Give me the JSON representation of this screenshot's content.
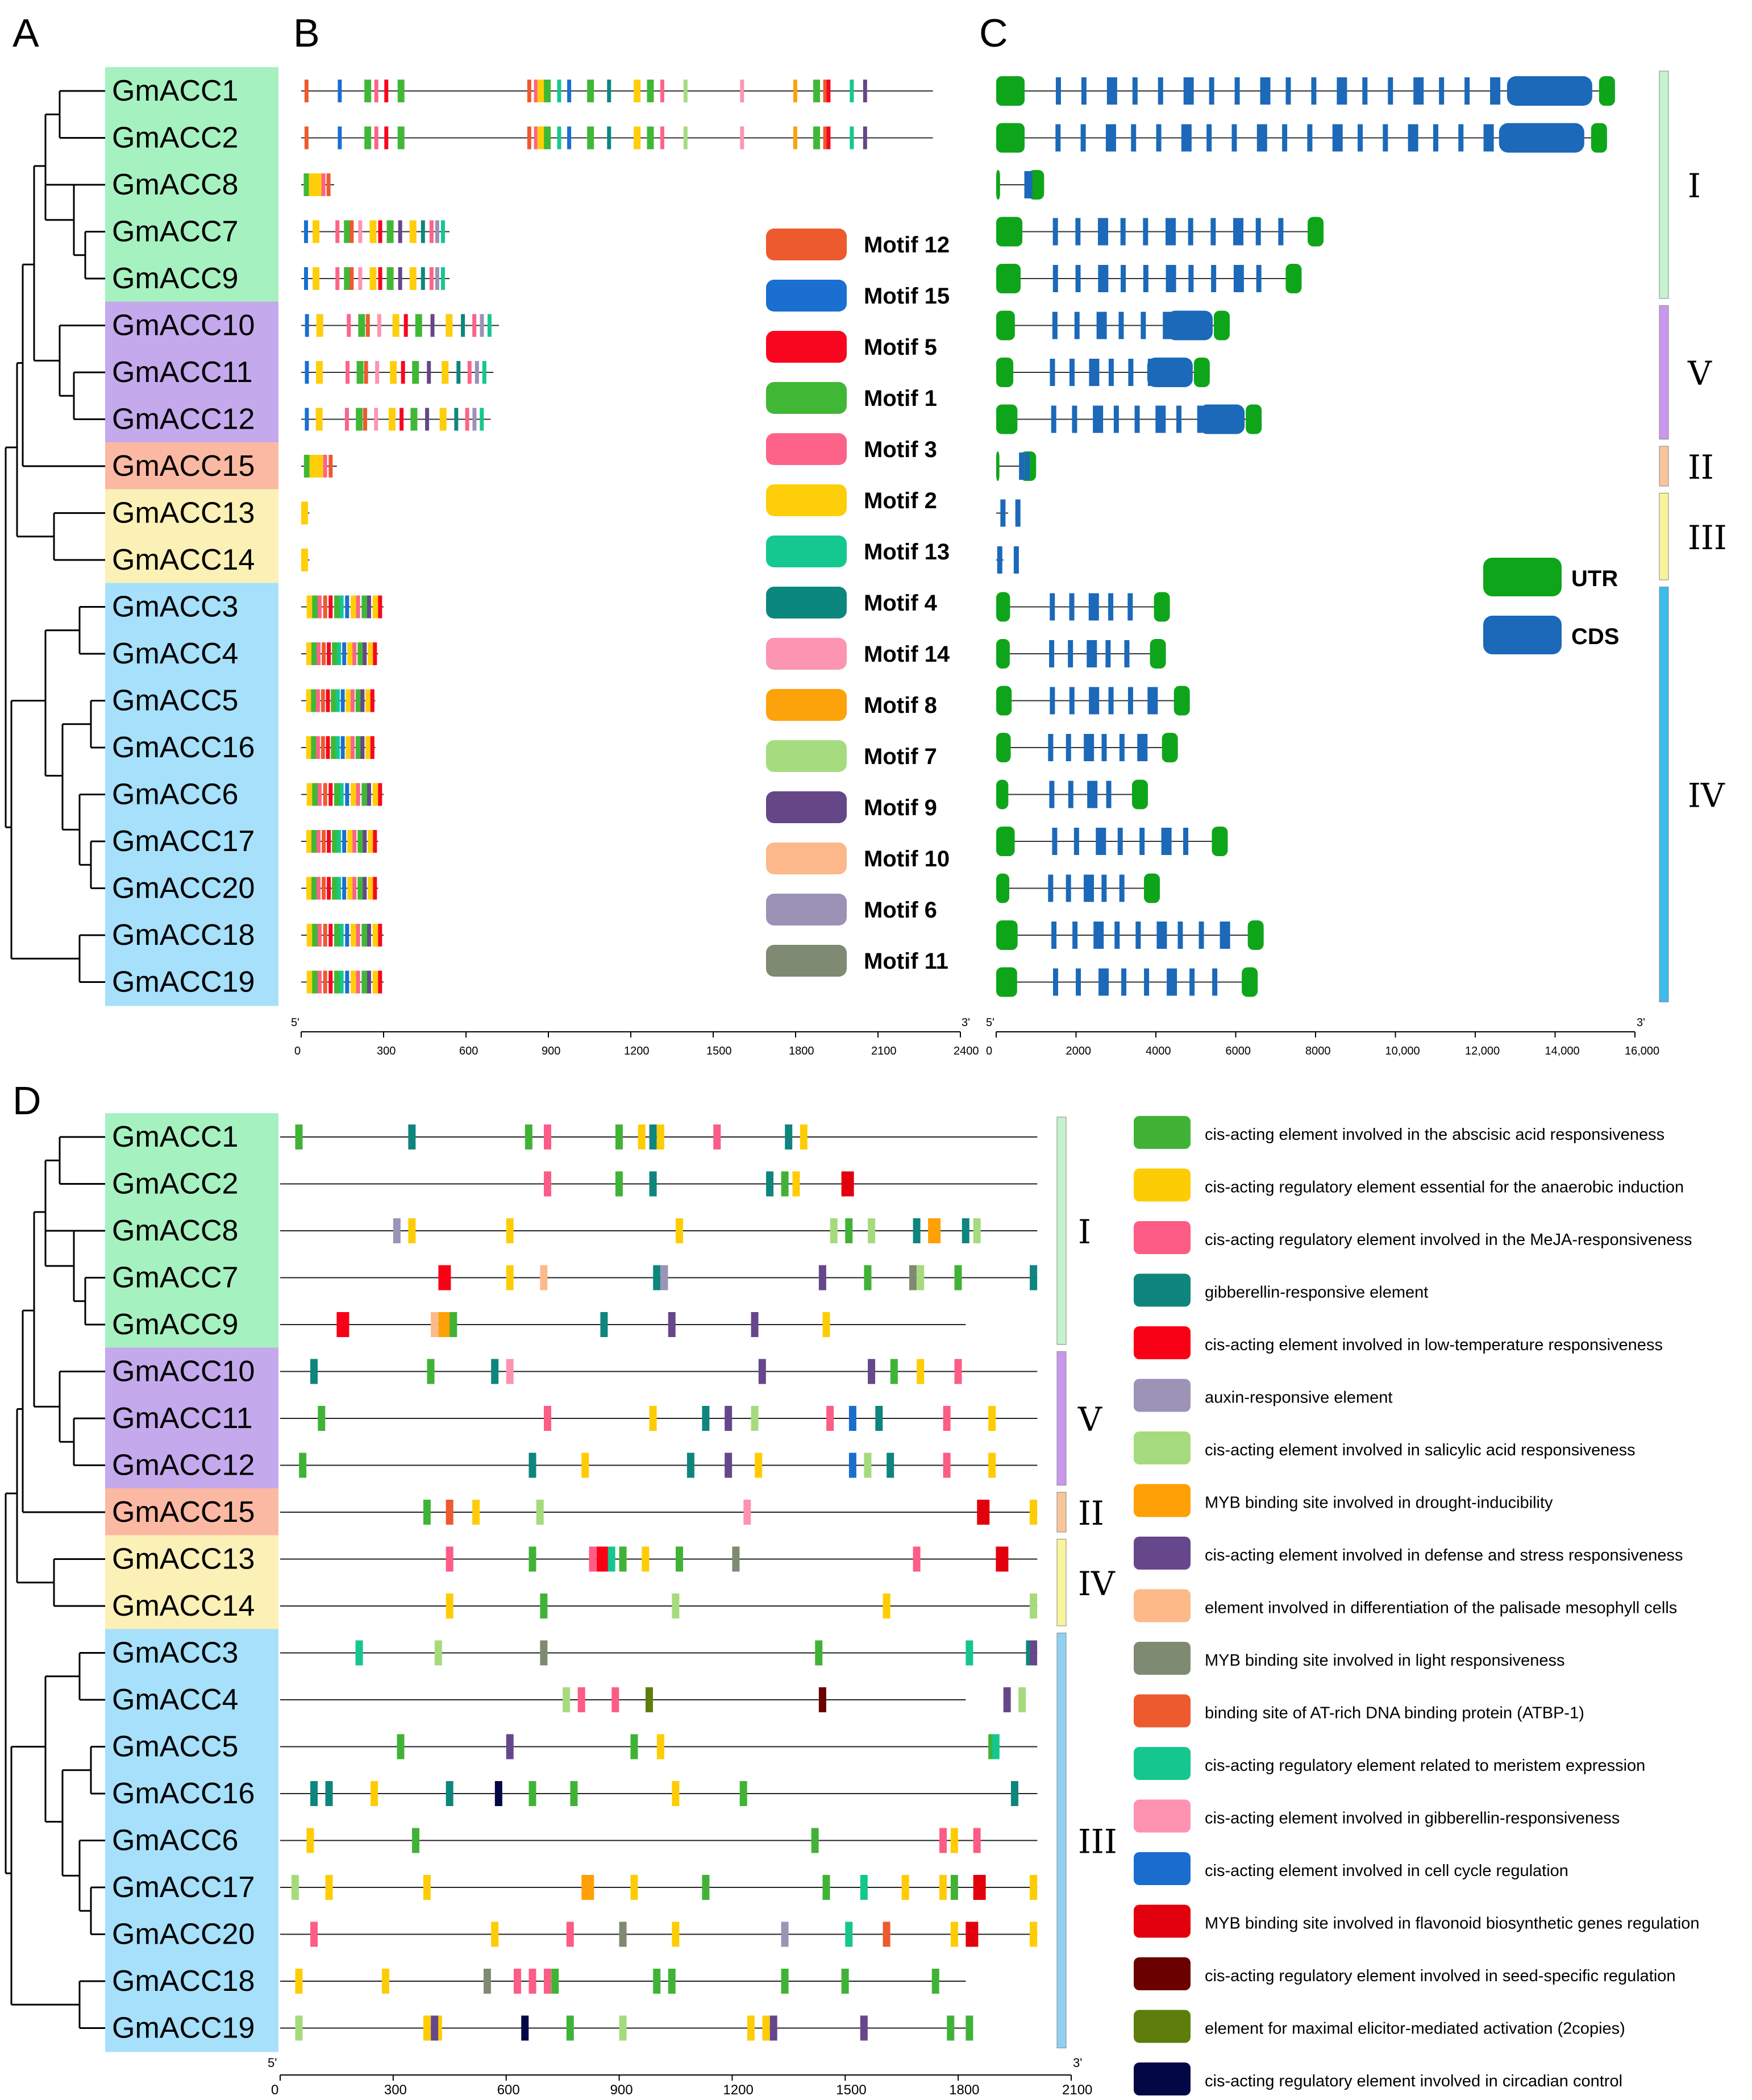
{
  "panel_letters": [
    "A",
    "B",
    "C",
    "D"
  ],
  "genes_top": [
    "GmACC1",
    "GmACC2",
    "GmACC8",
    "GmACC7",
    "GmACC9",
    "GmACC10",
    "GmACC11",
    "GmACC12",
    "GmACC15",
    "GmACC13",
    "GmACC14",
    "GmACC3",
    "GmACC4",
    "GmACC5",
    "GmACC16",
    "GmACC6",
    "GmACC17",
    "GmACC20",
    "GmACC18",
    "GmACC19"
  ],
  "genes_bottom": [
    "GmACC1",
    "GmACC2",
    "GmACC8",
    "GmACC7",
    "GmACC9",
    "GmACC10",
    "GmACC11",
    "GmACC12",
    "GmACC15",
    "GmACC13",
    "GmACC14",
    "GmACC3",
    "GmACC4",
    "GmACC5",
    "GmACC16",
    "GmACC6",
    "GmACC17",
    "GmACC20",
    "GmACC18",
    "GmACC19"
  ],
  "gene_groups": [
    "green",
    "green",
    "green",
    "green",
    "green",
    "purple",
    "purple",
    "purple",
    "salmon",
    "yellow",
    "yellow",
    "blue",
    "blue",
    "blue",
    "blue",
    "blue",
    "blue",
    "blue",
    "blue",
    "blue"
  ],
  "group_colors": {
    "green": "#a6f1c0",
    "purple": "#c4a9ec",
    "salmon": "#fbb9a3",
    "yellow": "#fbf0b6",
    "blue": "#a6e0fa"
  },
  "motif_legend": [
    {
      "label": "Motif 12",
      "color": "#ed5a2d"
    },
    {
      "label": "Motif 15",
      "color": "#1a6fd0"
    },
    {
      "label": "Motif 5",
      "color": "#f8061f"
    },
    {
      "label": "Motif 1",
      "color": "#40b836"
    },
    {
      "label": "Motif 3",
      "color": "#fd6388"
    },
    {
      "label": "Motif 2",
      "color": "#fece0a"
    },
    {
      "label": "Motif 13",
      "color": "#14c88f"
    },
    {
      "label": "Motif 4",
      "color": "#0c877e"
    },
    {
      "label": "Motif 14",
      "color": "#fc95b1"
    },
    {
      "label": "Motif 8",
      "color": "#fca20a"
    },
    {
      "label": "Motif 7",
      "color": "#a5dc80"
    },
    {
      "label": "Motif 9",
      "color": "#654788"
    },
    {
      "label": "Motif 10",
      "color": "#fcb88a"
    },
    {
      "label": "Motif 6",
      "color": "#9b92b6"
    },
    {
      "label": "Motif 11",
      "color": "#7f8a73"
    }
  ],
  "motif_axis": {
    "ticks": [
      "0",
      "300",
      "600",
      "900",
      "1200",
      "1500",
      "1800",
      "2100",
      "2400"
    ],
    "end5": "5'",
    "end3": "3'"
  },
  "motif_lengths": [
    2300,
    2300,
    120,
    540,
    540,
    720,
    700,
    690,
    130,
    30,
    30,
    300,
    280,
    270,
    270,
    300,
    280,
    280,
    300,
    300
  ],
  "structure_legend": [
    {
      "label": "UTR",
      "color": "#0fa51b"
    },
    {
      "label": "CDS",
      "color": "#1b69b8"
    }
  ],
  "structure_axis": {
    "ticks": [
      "0",
      "2000",
      "4000",
      "6000",
      "8000",
      "10,000",
      "12,000",
      "14,000",
      "16,000"
    ],
    "end5": "5'",
    "end3": "3'"
  },
  "structure_lengths": [
    15500,
    15300,
    1200,
    8200,
    7650,
    5850,
    5350,
    6650,
    1000,
    300,
    180,
    4350,
    4250,
    4850,
    4550,
    3800,
    5800,
    4100,
    6700,
    6550
  ],
  "structure_groups_top": [
    {
      "label": "I",
      "color": "#c5f2cf",
      "rows": [
        0,
        4
      ]
    },
    {
      "label": "V",
      "color": "#c997ee",
      "rows": [
        5,
        7
      ]
    },
    {
      "label": "II",
      "color": "#f8c59a",
      "rows": [
        8,
        8
      ]
    },
    {
      "label": "III",
      "color": "#f9f49b",
      "rows": [
        9,
        10
      ]
    },
    {
      "label": "IV",
      "color": "#3dbcec",
      "rows": [
        11,
        19
      ]
    }
  ],
  "promoter_axis": {
    "ticks": [
      "0",
      "300",
      "600",
      "900",
      "1200",
      "1500",
      "1800",
      "2100"
    ],
    "end5": "5'",
    "end3": "3'"
  },
  "promoter_groups": [
    {
      "label": "I",
      "color": "#c5f2cf",
      "rows": [
        0,
        4
      ]
    },
    {
      "label": "V",
      "color": "#c997ee",
      "rows": [
        5,
        7
      ]
    },
    {
      "label": "II",
      "color": "#f8c59a",
      "rows": [
        8,
        8
      ]
    },
    {
      "label": "IV",
      "color": "#f9f49b",
      "rows": [
        9,
        10
      ]
    },
    {
      "label": "III",
      "color": "#8fd0f3",
      "rows": [
        11,
        19
      ]
    }
  ],
  "cis_legend": [
    {
      "label": "cis-acting element involved in the abscisic acid responsiveness",
      "color": "#40b336"
    },
    {
      "label": "cis-acting regulatory element essential for the anaerobic induction",
      "color": "#fecc04"
    },
    {
      "label": "cis-acting regulatory element involved in the MeJA-responsiveness",
      "color": "#fc5c85"
    },
    {
      "label": "gibberellin-responsive element",
      "color": "#0e857d"
    },
    {
      "label": "cis-acting element involved in low-temperature responsiveness",
      "color": "#f80015"
    },
    {
      "label": "auxin-responsive element",
      "color": "#9c93b7"
    },
    {
      "label": "cis-acting element involved in salicylic acid responsiveness",
      "color": "#a6db7d"
    },
    {
      "label": "MYB binding site involved in drought-inducibility",
      "color": "#fea006"
    },
    {
      "label": "cis-acting element involved in defense and stress responsiveness",
      "color": "#66478b"
    },
    {
      "label": "element involved in differentiation of the palisade mesophyll cells",
      "color": "#fdba89"
    },
    {
      "label": "MYB binding site involved in light responsiveness",
      "color": "#7f8a72"
    },
    {
      "label": "binding site of AT-rich DNA binding protein (ATBP-1)",
      "color": "#ec5a2e"
    },
    {
      "label": "cis-acting regulatory element related to meristem expression",
      "color": "#16c68f"
    },
    {
      "label": "cis-acting element involved in gibberellin-responsiveness",
      "color": "#fd93b0"
    },
    {
      "label": "cis-acting element involved in cell cycle regulation",
      "color": "#1a6dce"
    },
    {
      "label": "MYB binding site involved in flavonoid biosynthetic genes regulation",
      "color": "#e3000d"
    },
    {
      "label": "cis-acting regulatory element involved in seed-specific regulation",
      "color": "#6b0000"
    },
    {
      "label": "element for maximal elicitor-mediated activation (2copies)",
      "color": "#5e7d0d"
    },
    {
      "label": "cis-acting regulatory element involved in circadian control",
      "color": "#020845"
    }
  ]
}
